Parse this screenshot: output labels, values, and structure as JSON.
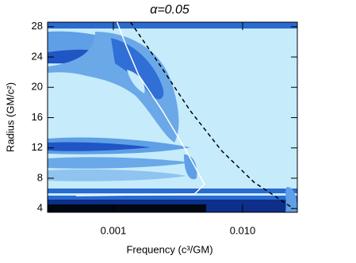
{
  "chart_data": {
    "type": "line",
    "title": "α=0.05",
    "x_label": "Frequency (c³/GM)",
    "y_label": "Radius (GM/c²)",
    "xscale": "log",
    "xlim": [
      0.00031,
      0.0265
    ],
    "xticks": [
      0.001,
      {
        "value": 0.01,
        "label": "0.010"
      }
    ],
    "ylim": [
      3.5,
      28.6
    ],
    "yticks": [
      4,
      8,
      12,
      16,
      20,
      24,
      28
    ],
    "series": [
      {
        "color": "#ffffff",
        "dash": false,
        "x": [
          0.000515,
          0.00423,
          0.00507,
          0.00367,
          0.0024,
          0.00157,
          0.00127,
          0.00107
        ],
        "values": [
          5.7,
          5.9,
          7.2,
          11.6,
          16.9,
          21.6,
          25.3,
          28.6
        ]
      },
      {
        "color": "#000000",
        "dash": true,
        "x": [
          0.00136,
          0.00224,
          0.00394,
          0.0069,
          0.0122,
          0.0247
        ],
        "values": [
          28.6,
          23.2,
          16.9,
          11.6,
          7.5,
          4
        ]
      }
    ]
  }
}
